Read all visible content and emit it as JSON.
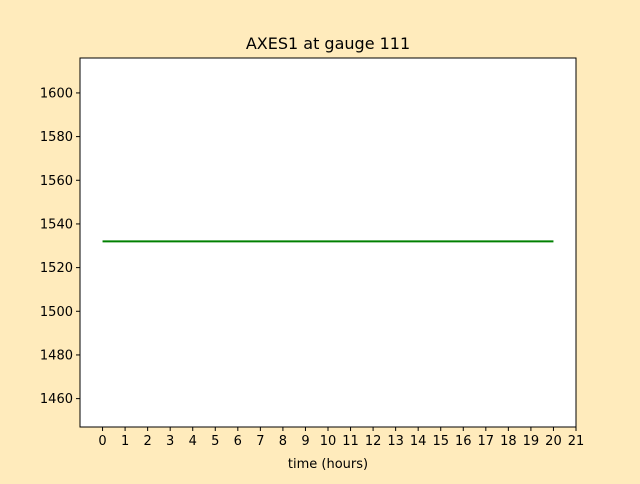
{
  "figure": {
    "background": "#ffebbc"
  },
  "chart_data": {
    "type": "line",
    "title": "AXES1 at gauge 111",
    "xlabel": "time (hours)",
    "ylabel": "",
    "xlim": [
      -1,
      21
    ],
    "ylim": [
      1447,
      1616
    ],
    "xticks": [
      0,
      1,
      2,
      3,
      4,
      5,
      6,
      7,
      8,
      9,
      10,
      11,
      12,
      13,
      14,
      15,
      16,
      17,
      18,
      19,
      20,
      21
    ],
    "yticks": [
      1460,
      1480,
      1500,
      1520,
      1540,
      1560,
      1580,
      1600
    ],
    "grid": false,
    "legend": "none",
    "series": [
      {
        "color": "#008000",
        "x": [
          0,
          20
        ],
        "y": [
          1532,
          1532
        ]
      }
    ]
  }
}
